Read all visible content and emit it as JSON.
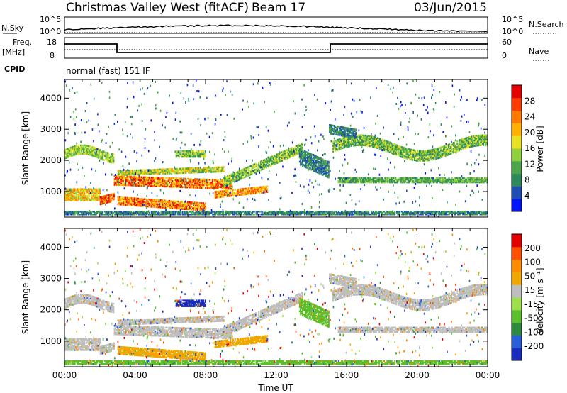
{
  "header": {
    "station": "Christmas Valley West (fitACF)",
    "beam": "Beam 17",
    "date": "03/Jun/2015"
  },
  "side_labels": {
    "nsky": "N.Sky",
    "nsearch": "N.Search",
    "freq": "Freq.",
    "freq_unit": "[MHz]",
    "nave": "Nave",
    "cpid": "CPID",
    "cpid_value": "normal (fast) 151 IF",
    "noise_top": "10^5",
    "noise_bottom": "10^0",
    "freq_top": "18",
    "freq_bottom": "8",
    "nave_top": "60",
    "nave_bottom": "0"
  },
  "chart_data": [
    {
      "type": "heatmap",
      "panel": "power",
      "ylabel": "Slant Range [km]",
      "colorbar_label": "Power [dB]",
      "colorbar_ticks": [
        "4",
        "8",
        "12",
        "16",
        "20",
        "24",
        "28"
      ],
      "colorbar_colors": [
        "#0014ff",
        "#1f4fb4",
        "#2d8a5a",
        "#4ea44a",
        "#8ed13c",
        "#e8e020",
        "#ffb000",
        "#ff7800",
        "#ff3c00",
        "#e60000"
      ],
      "xlim": [
        0,
        24
      ],
      "ylim": [
        180,
        4600
      ],
      "yticks": [
        1000,
        2000,
        3000,
        4000
      ]
    },
    {
      "type": "heatmap",
      "panel": "velocity",
      "ylabel": "Slant Range [km]",
      "xlabel": "Time UT",
      "colorbar_label": "Velocity [m s⁻¹]",
      "colorbar_ticks": [
        "200",
        "100",
        "50",
        "15",
        "-15",
        "-50",
        "-100",
        "-200"
      ],
      "colorbar_colors": [
        "#1a2dbf",
        "#2a5fd9",
        "#2e8a3e",
        "#5cbf2a",
        "#9ee04a",
        "#bebebe",
        "#f0a800",
        "#ff8c00",
        "#ff5000",
        "#e60000"
      ],
      "xlim": [
        0,
        24
      ],
      "ylim": [
        180,
        4600
      ],
      "yticks": [
        1000,
        2000,
        3000,
        4000
      ],
      "xticks": [
        "00:00",
        "04:00",
        "08:00",
        "12:00",
        "16:00",
        "20:00",
        "00:00"
      ]
    }
  ]
}
